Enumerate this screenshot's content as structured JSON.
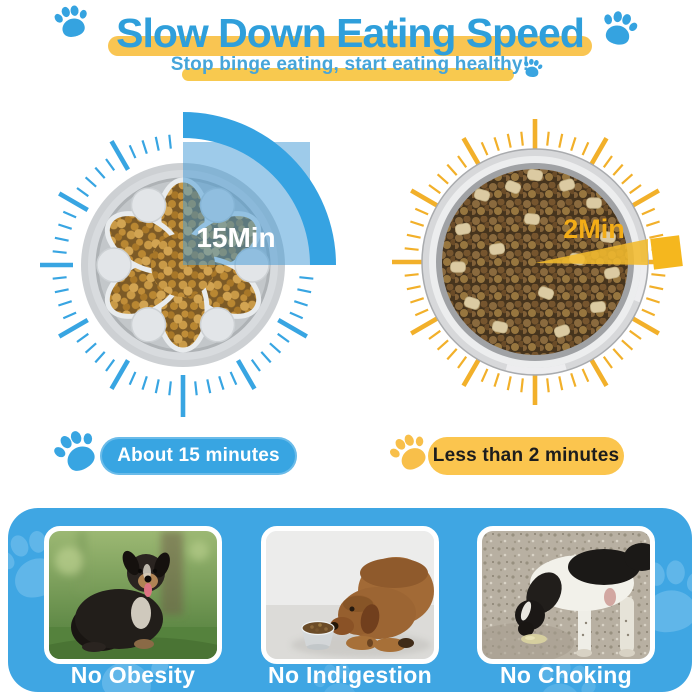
{
  "header": {
    "title": "Slow Down Eating Speed",
    "subtitle": "Stop binge eating, start eating healthy!"
  },
  "clocks": {
    "slow": {
      "time_label": "15Min",
      "caption": "About 15 minutes"
    },
    "fast": {
      "time_label": "2Min",
      "caption": "Less than 2 minutes"
    }
  },
  "benefits": [
    {
      "label": "No Obesity"
    },
    {
      "label": "No Indigestion"
    },
    {
      "label": "No Choking"
    }
  ],
  "icons": {
    "decoration": "paw-icon"
  },
  "colors": {
    "blue": "#38a5e2",
    "blue_title": "#2f9fdb",
    "yellow": "#f9c552",
    "yellow_deep": "#f2b02a",
    "panel_blue": "#3fa6e3",
    "text_dark": "#1d1d1d",
    "time_fast_text": "#f3ad17",
    "time_slow_text": "#ffffff"
  }
}
